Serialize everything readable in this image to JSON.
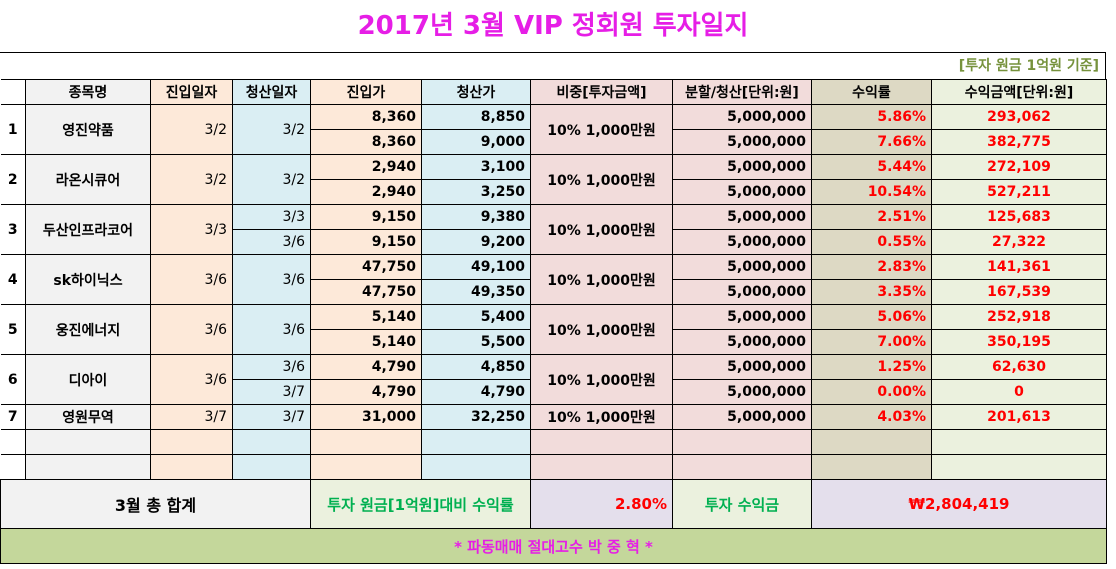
{
  "title": "2017년 3월 VIP 정회원 투자일지",
  "subtitle": "[투자 원금 1억원 기준]",
  "headers": [
    "",
    "종목명",
    "진입일자",
    "청산일자",
    "진입가",
    "청산가",
    "비중[투자금액]",
    "분할/청산[단위:원]",
    "수익률",
    "수익금액[단위:원]"
  ],
  "stocks": [
    {
      "no": "1",
      "name": "영진약품",
      "entry_date": "3/2",
      "weight": "10% 1,000만원",
      "rows": [
        {
          "exit_date": "3/2",
          "entry": "8,360",
          "exit": "8,850",
          "split": "5,000,000",
          "rate": "5.86%",
          "profit": "293,062"
        },
        {
          "exit_date": null,
          "entry": "8,360",
          "exit": "9,000",
          "split": "5,000,000",
          "rate": "7.66%",
          "profit": "382,775"
        }
      ]
    },
    {
      "no": "2",
      "name": "라온시큐어",
      "entry_date": "3/2",
      "weight": "10% 1,000만원",
      "rows": [
        {
          "exit_date": "3/2",
          "entry": "2,940",
          "exit": "3,100",
          "split": "5,000,000",
          "rate": "5.44%",
          "profit": "272,109"
        },
        {
          "exit_date": null,
          "entry": "2,940",
          "exit": "3,250",
          "split": "5,000,000",
          "rate": "10.54%",
          "profit": "527,211"
        }
      ]
    },
    {
      "no": "3",
      "name": "두산인프라코어",
      "entry_date": "3/3",
      "weight": "10% 1,000만원",
      "rows": [
        {
          "exit_date": "3/3",
          "entry": "9,150",
          "exit": "9,380",
          "split": "5,000,000",
          "rate": "2.51%",
          "profit": "125,683"
        },
        {
          "exit_date": "3/6",
          "entry": "9,150",
          "exit": "9,200",
          "split": "5,000,000",
          "rate": "0.55%",
          "profit": "27,322"
        }
      ]
    },
    {
      "no": "4",
      "name": "sk하이닉스",
      "entry_date": "3/6",
      "weight": "10% 1,000만원",
      "rows": [
        {
          "exit_date": "3/6",
          "entry": "47,750",
          "exit": "49,100",
          "split": "5,000,000",
          "rate": "2.83%",
          "profit": "141,361"
        },
        {
          "exit_date": null,
          "entry": "47,750",
          "exit": "49,350",
          "split": "5,000,000",
          "rate": "3.35%",
          "profit": "167,539"
        }
      ]
    },
    {
      "no": "5",
      "name": "웅진에너지",
      "entry_date": "3/6",
      "weight": "10% 1,000만원",
      "rows": [
        {
          "exit_date": "3/6",
          "entry": "5,140",
          "exit": "5,400",
          "split": "5,000,000",
          "rate": "5.06%",
          "profit": "252,918"
        },
        {
          "exit_date": null,
          "entry": "5,140",
          "exit": "5,500",
          "split": "5,000,000",
          "rate": "7.00%",
          "profit": "350,195"
        }
      ]
    },
    {
      "no": "6",
      "name": "디아이",
      "entry_date": "3/6",
      "weight": "10% 1,000만원",
      "rows": [
        {
          "exit_date": "3/6",
          "entry": "4,790",
          "exit": "4,850",
          "split": "5,000,000",
          "rate": "1.25%",
          "profit": "62,630"
        },
        {
          "exit_date": "3/7",
          "entry": "4,790",
          "exit": "4,790",
          "split": "5,000,000",
          "rate": "0.00%",
          "profit": "0"
        }
      ]
    },
    {
      "no": "7",
      "name": "영원무역",
      "entry_date": "3/7",
      "weight": "10% 1,000만원",
      "rows": [
        {
          "exit_date": "3/7",
          "entry": "31,000",
          "exit": "32,250",
          "split": "5,000,000",
          "rate": "4.03%",
          "profit": "201,613"
        }
      ]
    }
  ],
  "summary": {
    "label": "3월 총 합계",
    "rate_label": "투자 원금[1억원]대비 수익률",
    "rate": "2.80%",
    "profit_label": "투자 수익금",
    "profit": "₩2,804,419"
  },
  "footer": "* 파동매매 절대고수 박 중 혁 *"
}
